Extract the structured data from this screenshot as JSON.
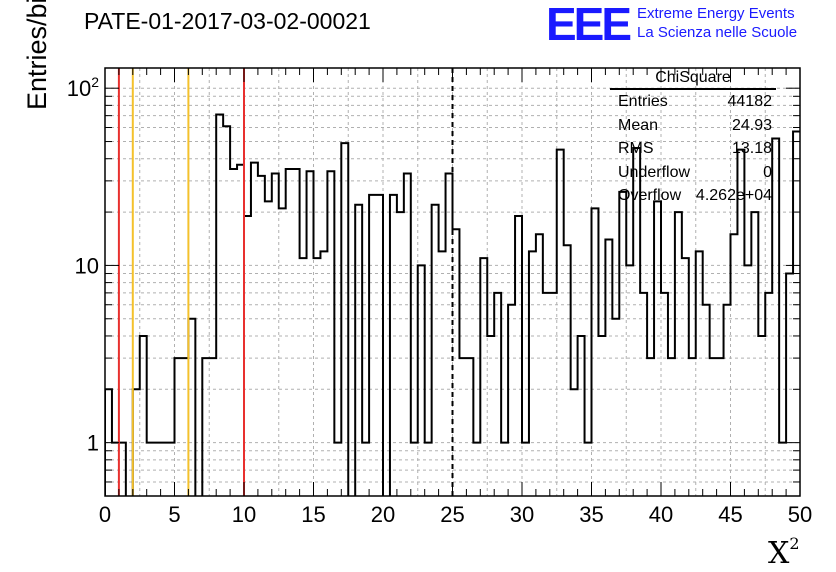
{
  "title": "PATE-01-2017-03-02-00021",
  "logo": {
    "mark": "EEE",
    "line1": "Extreme Energy Events",
    "line2": "La Scienza nelle Scuole",
    "color": "#1a1aff"
  },
  "stats": {
    "name": "ChiSquare",
    "rows": [
      {
        "key": "Entries",
        "value": "44182"
      },
      {
        "key": "Mean",
        "value": "24.93"
      },
      {
        "key": "RMS",
        "value": "13.18"
      },
      {
        "key": "Underflow",
        "value": "0"
      },
      {
        "key": "Overflow",
        "value": "4.262e+04"
      }
    ]
  },
  "chart_data": {
    "type": "histogram",
    "xlabel_base": "X",
    "xlabel_sup": "2",
    "ylabel": "Entries/bin",
    "xlim": [
      0,
      50
    ],
    "ylim": [
      0.5,
      130
    ],
    "yscale": "log",
    "grid": true,
    "bin_width": 0.5,
    "x_ticks": [
      0,
      5,
      10,
      15,
      20,
      25,
      30,
      35,
      40,
      45,
      50
    ],
    "y_ticks": [
      1,
      10,
      100
    ],
    "y_tick_labels": [
      "1",
      "10",
      "10^2"
    ],
    "values": [
      2,
      1,
      1,
      0,
      2,
      4,
      1,
      1,
      1,
      1,
      3,
      3,
      5,
      0,
      3,
      3,
      71,
      61,
      35,
      37,
      19,
      38,
      32,
      23,
      33,
      21,
      35,
      35,
      11,
      34,
      11,
      12,
      34,
      1,
      49,
      0,
      22,
      1,
      25,
      25,
      0,
      25,
      20,
      33,
      1,
      10,
      1,
      22,
      12,
      33,
      16,
      3,
      3,
      1,
      11,
      4,
      7,
      1,
      6,
      19,
      1,
      12,
      15,
      7,
      7,
      45,
      13,
      2,
      4,
      1,
      21,
      4,
      14,
      5,
      26,
      10,
      46,
      7,
      3,
      23,
      7,
      3,
      20,
      11,
      3,
      12,
      6,
      3,
      3,
      6,
      15,
      45,
      10,
      20,
      4,
      7,
      52,
      1,
      9,
      57
    ],
    "vlines": [
      {
        "x": 1,
        "color": "#e8302e",
        "style": "solid"
      },
      {
        "x": 10,
        "color": "#e8302e",
        "style": "solid"
      },
      {
        "x": 2,
        "color": "#f4c12c",
        "style": "solid"
      },
      {
        "x": 6,
        "color": "#f4c12c",
        "style": "solid"
      },
      {
        "x": 25,
        "color": "#000000",
        "style": "dashed"
      }
    ]
  }
}
